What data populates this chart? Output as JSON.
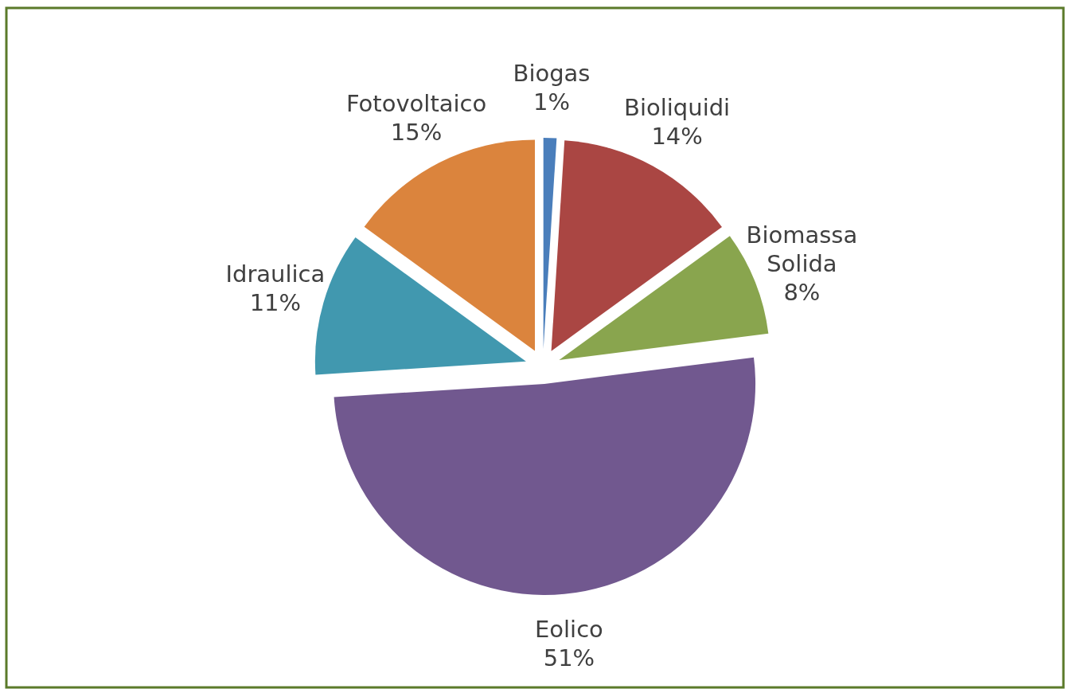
{
  "chart_data": {
    "type": "pie",
    "categories": [
      "Biogas",
      "Bioliquidi",
      "Biomassa Solida",
      "Eolico",
      "Idraulica",
      "Fotovoltaico"
    ],
    "values": [
      1,
      14,
      8,
      51,
      11,
      15
    ],
    "colors": [
      "#4a7ebb",
      "#aa4643",
      "#89a54e",
      "#71588f",
      "#4198af",
      "#db843d"
    ],
    "value_labels": [
      "1%",
      "14%",
      "8%",
      "51%",
      "11%",
      "15%"
    ]
  }
}
